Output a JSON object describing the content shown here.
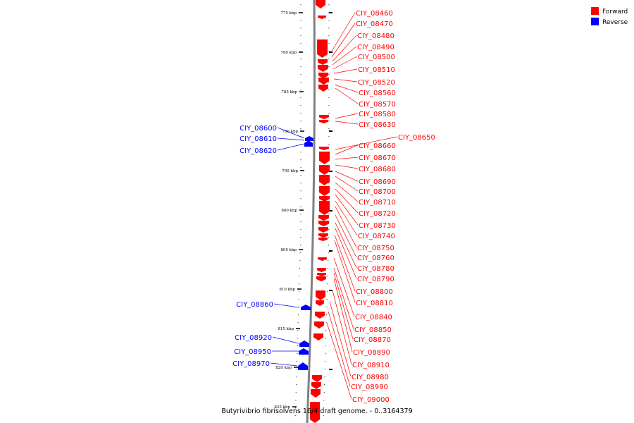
{
  "legend": [
    {
      "label": "Forward",
      "color": "#ff0000"
    },
    {
      "label": "Reverse",
      "color": "#0000ff"
    }
  ],
  "caption": "Butyrivibrio fibrisolvens 16/4 draft genome. - 0..3164379",
  "colors": {
    "forward": "#ff0000",
    "reverse": "#0000ff",
    "backbone": "#808080"
  },
  "axis": {
    "unit": "kbp",
    "ticks": [
      "775 kbp",
      "780 kbp",
      "785 kbp",
      "790 kbp",
      "795 kbp",
      "800 kbp",
      "805 kbp",
      "810 kbp",
      "815 kbp",
      "820 kbp",
      "825 kbp"
    ]
  },
  "forward_genes": [
    "CIY_08460",
    "CIY_08470",
    "CIY_08480",
    "CIY_08490",
    "CIY_08500",
    "CIY_08510",
    "CIY_08520",
    "CIY_08560",
    "CIY_08570",
    "CIY_08580",
    "CIY_08630",
    "CIY_08650",
    "CIY_08660",
    "CIY_08670",
    "CIY_08680",
    "CIY_08690",
    "CIY_08700",
    "CIY_08710",
    "CIY_08720",
    "CIY_08730",
    "CIY_08740",
    "CIY_08750",
    "CIY_08760",
    "CIY_08780",
    "CIY_08790",
    "CIY_08800",
    "CIY_08810",
    "CIY_08840",
    "CIY_08850",
    "CIY_08870",
    "CIY_08890",
    "CIY_08910",
    "CIY_08980",
    "CIY_08990",
    "CIY_09000"
  ],
  "reverse_genes": [
    "CIY_08600",
    "CIY_08610",
    "CIY_08620",
    "CIY_08860",
    "CIY_08920",
    "CIY_08950",
    "CIY_08970"
  ]
}
